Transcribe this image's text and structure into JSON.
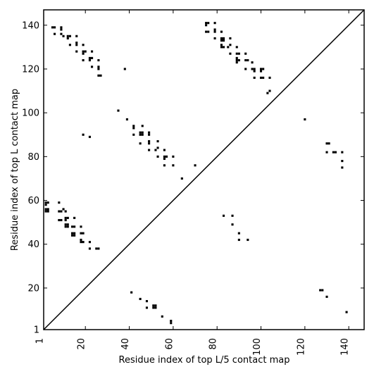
{
  "chart_data": {
    "type": "heatmap",
    "title": "",
    "xlabel": "Residue index of top L/5 contact map",
    "ylabel": "Residue index of top L contact map",
    "xlim": [
      1,
      147
    ],
    "ylim": [
      1,
      147
    ],
    "xticks": [
      1,
      20,
      40,
      60,
      80,
      100,
      120,
      140
    ],
    "yticks": [
      1,
      20,
      40,
      60,
      80,
      100,
      120,
      140
    ],
    "grid": false,
    "legend": "none",
    "diagonal": true,
    "cell_color": "#000000",
    "points": [
      [
        5,
        139
      ],
      [
        6,
        139
      ],
      [
        9,
        139
      ],
      [
        9,
        138
      ],
      [
        6,
        136
      ],
      [
        9,
        136
      ],
      [
        10,
        135
      ],
      [
        12,
        135
      ],
      [
        13,
        135
      ],
      [
        12,
        134
      ],
      [
        16,
        135
      ],
      [
        13,
        131
      ],
      [
        16,
        132
      ],
      [
        16,
        131
      ],
      [
        19,
        131
      ],
      [
        16,
        128
      ],
      [
        19,
        128
      ],
      [
        20,
        128
      ],
      [
        19,
        127
      ],
      [
        23,
        128
      ],
      [
        22,
        125
      ],
      [
        23,
        125
      ],
      [
        22,
        124
      ],
      [
        26,
        124
      ],
      [
        19,
        124
      ],
      [
        23,
        121
      ],
      [
        26,
        121
      ],
      [
        26,
        120
      ],
      [
        26,
        117
      ],
      [
        27,
        117
      ],
      [
        38,
        120
      ],
      [
        35,
        101
      ],
      [
        39,
        97
      ],
      [
        19,
        90
      ],
      [
        22,
        89
      ],
      [
        42,
        94
      ],
      [
        42,
        93
      ],
      [
        46,
        94
      ],
      [
        45,
        91
      ],
      [
        46,
        91
      ],
      [
        46,
        90
      ],
      [
        49,
        91
      ],
      [
        49,
        90
      ],
      [
        42,
        90
      ],
      [
        45,
        90
      ],
      [
        45,
        86
      ],
      [
        49,
        87
      ],
      [
        49,
        86
      ],
      [
        53,
        87
      ],
      [
        49,
        83
      ],
      [
        52,
        83
      ],
      [
        53,
        84
      ],
      [
        53,
        80
      ],
      [
        56,
        83
      ],
      [
        56,
        80
      ],
      [
        57,
        80
      ],
      [
        60,
        80
      ],
      [
        56,
        79
      ],
      [
        56,
        76
      ],
      [
        60,
        76
      ],
      [
        70,
        76
      ],
      [
        64,
        70
      ],
      [
        75,
        141
      ],
      [
        76,
        141
      ],
      [
        79,
        141
      ],
      [
        75,
        140
      ],
      [
        79,
        138
      ],
      [
        76,
        137
      ],
      [
        79,
        137
      ],
      [
        75,
        137
      ],
      [
        82,
        137
      ],
      [
        79,
        134
      ],
      [
        82,
        134
      ],
      [
        83,
        134
      ],
      [
        86,
        134
      ],
      [
        82,
        133
      ],
      [
        83,
        133
      ],
      [
        82,
        131
      ],
      [
        86,
        131
      ],
      [
        85,
        130
      ],
      [
        83,
        130
      ],
      [
        82,
        130
      ],
      [
        89,
        130
      ],
      [
        86,
        127
      ],
      [
        89,
        127
      ],
      [
        90,
        127
      ],
      [
        93,
        127
      ],
      [
        89,
        125
      ],
      [
        89,
        124
      ],
      [
        90,
        124
      ],
      [
        93,
        124
      ],
      [
        94,
        124
      ],
      [
        96,
        123
      ],
      [
        89,
        123
      ],
      [
        93,
        120
      ],
      [
        96,
        120
      ],
      [
        97,
        120
      ],
      [
        100,
        120
      ],
      [
        101,
        120
      ],
      [
        97,
        119
      ],
      [
        100,
        119
      ],
      [
        97,
        116
      ],
      [
        100,
        116
      ],
      [
        101,
        116
      ],
      [
        104,
        116
      ],
      [
        104,
        110
      ],
      [
        103,
        109
      ],
      [
        120,
        97
      ],
      [
        130,
        86
      ],
      [
        131,
        86
      ],
      [
        130,
        82
      ],
      [
        133,
        82
      ],
      [
        134,
        82
      ],
      [
        137,
        82
      ],
      [
        137,
        78
      ],
      [
        137,
        75
      ],
      [
        2,
        59
      ],
      [
        3,
        59
      ],
      [
        8,
        59
      ],
      [
        2,
        58
      ],
      [
        2,
        56
      ],
      [
        3,
        56
      ],
      [
        2,
        55
      ],
      [
        3,
        55
      ],
      [
        8,
        55
      ],
      [
        9,
        55
      ],
      [
        10,
        56
      ],
      [
        11,
        55
      ],
      [
        8,
        51
      ],
      [
        9,
        51
      ],
      [
        11,
        52
      ],
      [
        12,
        52
      ],
      [
        15,
        52
      ],
      [
        11,
        51
      ],
      [
        11,
        49
      ],
      [
        12,
        49
      ],
      [
        11,
        48
      ],
      [
        12,
        48
      ],
      [
        14,
        48
      ],
      [
        15,
        48
      ],
      [
        18,
        48
      ],
      [
        14,
        45
      ],
      [
        15,
        45
      ],
      [
        18,
        45
      ],
      [
        19,
        45
      ],
      [
        14,
        44
      ],
      [
        15,
        44
      ],
      [
        18,
        42
      ],
      [
        18,
        41
      ],
      [
        19,
        41
      ],
      [
        22,
        41
      ],
      [
        22,
        38
      ],
      [
        25,
        38
      ],
      [
        26,
        38
      ],
      [
        83,
        53
      ],
      [
        87,
        53
      ],
      [
        87,
        49
      ],
      [
        90,
        45
      ],
      [
        90,
        42
      ],
      [
        94,
        42
      ],
      [
        41,
        18
      ],
      [
        45,
        15
      ],
      [
        48,
        14
      ],
      [
        48,
        11
      ],
      [
        51,
        12
      ],
      [
        51,
        11
      ],
      [
        52,
        11
      ],
      [
        52,
        12
      ],
      [
        55,
        7
      ],
      [
        59,
        5
      ],
      [
        59,
        4
      ],
      [
        127,
        19
      ],
      [
        128,
        19
      ],
      [
        130,
        16
      ],
      [
        139,
        9
      ]
    ]
  }
}
